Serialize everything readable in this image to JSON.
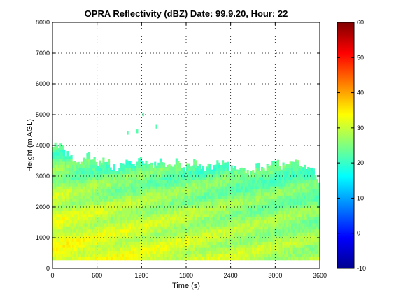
{
  "chart_data": {
    "type": "heatmap",
    "title": "OPRA Reflectivity (dBZ)  Date: 99.9.20, Hour: 22",
    "xlabel": "Time (s)",
    "ylabel": "Height (m AGL)",
    "xlim": [
      0,
      3600
    ],
    "ylim": [
      0,
      8000
    ],
    "xticks": [
      "0",
      "600",
      "1200",
      "1800",
      "2400",
      "3000",
      "3600"
    ],
    "yticks": [
      "0",
      "1000",
      "2000",
      "3000",
      "4000",
      "5000",
      "6000",
      "7000",
      "8000"
    ],
    "grid": true,
    "colorbar": {
      "min": -10,
      "max": 60,
      "ticks": [
        "-10",
        "0",
        "10",
        "20",
        "30",
        "40",
        "50",
        "60"
      ],
      "colormap": "jet"
    },
    "echo_base_height_m": 280,
    "echo_top_height_m": [
      [
        0,
        4050
      ],
      [
        120,
        3900
      ],
      [
        240,
        3600
      ],
      [
        360,
        3450
      ],
      [
        480,
        3700
      ],
      [
        600,
        3400
      ],
      [
        720,
        3600
      ],
      [
        840,
        3200
      ],
      [
        960,
        3450
      ],
      [
        1080,
        3350
      ],
      [
        1200,
        3600
      ],
      [
        1320,
        3300
      ],
      [
        1440,
        3500
      ],
      [
        1560,
        3250
      ],
      [
        1680,
        3550
      ],
      [
        1800,
        3250
      ],
      [
        1920,
        3500
      ],
      [
        2040,
        3300
      ],
      [
        2160,
        3250
      ],
      [
        2280,
        3500
      ],
      [
        2400,
        3250
      ],
      [
        2520,
        3300
      ],
      [
        2640,
        3100
      ],
      [
        2760,
        3300
      ],
      [
        2880,
        3250
      ],
      [
        3000,
        3500
      ],
      [
        3120,
        3300
      ],
      [
        3240,
        3600
      ],
      [
        3360,
        3300
      ],
      [
        3480,
        3250
      ],
      [
        3600,
        2800
      ]
    ],
    "isolated_cells": [
      {
        "time_s": 1000,
        "height_m": 4350,
        "value_dbz": 22
      },
      {
        "time_s": 1130,
        "height_m": 4400,
        "value_dbz": 22
      },
      {
        "time_s": 1390,
        "height_m": 4550,
        "value_dbz": 22
      },
      {
        "time_s": 1210,
        "height_m": 4950,
        "value_dbz": 22
      }
    ],
    "reflectivity_profile_dbz": {
      "near_surface_early": 33,
      "mid_levels_early": 30,
      "near_top": 22,
      "near_surface_late": 28,
      "mid_levels_late": 25
    }
  }
}
